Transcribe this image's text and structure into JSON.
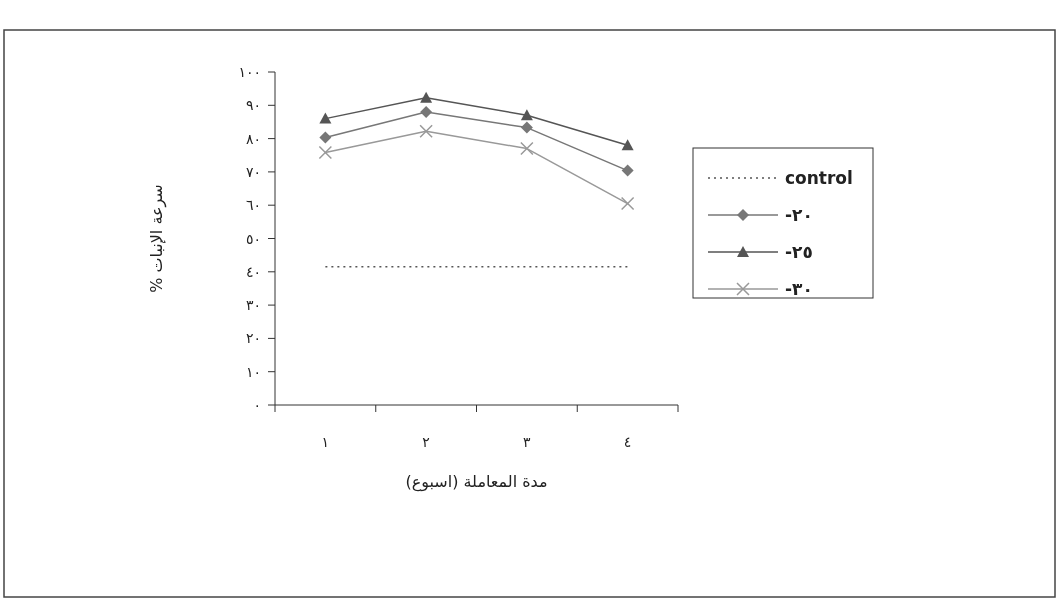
{
  "chart_data": {
    "type": "line",
    "xlabel": "مدة المعاملة (اسبوع)",
    "ylabel": "سرعة الإنبات %",
    "categories": [
      "١",
      "٢",
      "٣",
      "٤"
    ],
    "ylim": [
      0,
      100
    ],
    "yticks": [
      {
        "value": 0,
        "label": "٠"
      },
      {
        "value": 10,
        "label": "١٠"
      },
      {
        "value": 20,
        "label": "٢٠"
      },
      {
        "value": 30,
        "label": "٣٠"
      },
      {
        "value": 40,
        "label": "٤٠"
      },
      {
        "value": 50,
        "label": "٥٠"
      },
      {
        "value": 60,
        "label": "٦٠"
      },
      {
        "value": 70,
        "label": "٧٠"
      },
      {
        "value": 80,
        "label": "٨٠"
      },
      {
        "value": 90,
        "label": "٩٠"
      },
      {
        "value": 100,
        "label": "١٠٠"
      }
    ],
    "grid": false,
    "legend": "right",
    "series": [
      {
        "name": "control",
        "color": "#555555",
        "values": [
          41.5,
          41.5,
          41.5,
          41.5
        ],
        "marker": "none",
        "line_style": "dotted"
      },
      {
        "name": "-٢٠",
        "color": "#777777",
        "values": [
          80.3,
          88,
          83.3,
          70.4
        ],
        "marker": "diamond",
        "line_style": "solid"
      },
      {
        "name": "-٢٥",
        "color": "#555555",
        "values": [
          86,
          92.3,
          87,
          78
        ],
        "marker": "triangle",
        "line_style": "solid"
      },
      {
        "name": "-٣٠",
        "color": "#999999",
        "values": [
          75.8,
          82.2,
          77,
          60.5
        ],
        "marker": "cross",
        "line_style": "solid"
      }
    ]
  }
}
